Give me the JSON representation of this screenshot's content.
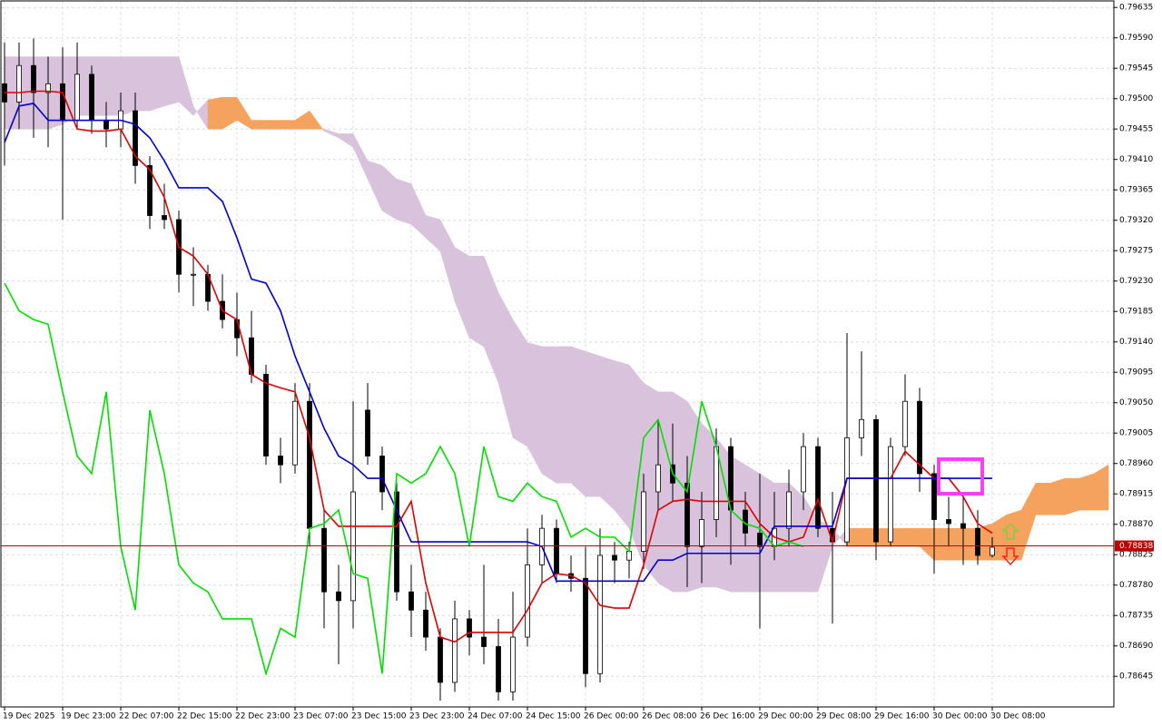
{
  "chart_data": {
    "type": "candlestick",
    "ylim": [
      0.78601,
      0.79646
    ],
    "yticks": [
      0.79635,
      {
        "value": 0.7959,
        "label": "0.79590"
      },
      0.79545,
      {
        "value": 0.795,
        "label": "0.79500"
      },
      0.79455,
      {
        "value": 0.7941,
        "label": "0.79410"
      },
      0.79365,
      {
        "value": 0.7932,
        "label": "0.79320"
      },
      0.79275,
      {
        "value": 0.7923,
        "label": "0.79230"
      },
      0.79185,
      {
        "value": 0.7914,
        "label": "0.79140"
      },
      0.79095,
      {
        "value": 0.7905,
        "label": "0.79050"
      },
      0.79005,
      {
        "value": 0.7896,
        "label": "0.78960"
      },
      0.78915,
      {
        "value": 0.7887,
        "label": "0.78870"
      },
      0.78825,
      {
        "value": 0.7878,
        "label": "0.78780"
      },
      0.78735,
      {
        "value": 0.7869,
        "label": "0.78690"
      },
      0.78645
    ],
    "grid": true,
    "categories": [
      "19 Dec 2025",
      null,
      null,
      null,
      "19 Dec 23:00",
      null,
      null,
      null,
      "22 Dec 07:00",
      null,
      null,
      null,
      "22 Dec 15:00",
      null,
      null,
      null,
      "22 Dec 23:00",
      null,
      null,
      null,
      "23 Dec 07:00",
      null,
      null,
      null,
      "23 Dec 15:00",
      null,
      null,
      null,
      "23 Dec 23:00",
      null,
      null,
      null,
      "24 Dec 07:00",
      null,
      null,
      null,
      "24 Dec 15:00",
      null,
      null,
      null,
      "26 Dec 00:00",
      null,
      null,
      null,
      "26 Dec 08:00",
      null,
      null,
      null,
      "26 Dec 16:00",
      null,
      null,
      null,
      "29 Dec 00:00",
      null,
      null,
      null,
      "29 Dec 08:00",
      null,
      null,
      null,
      "29 Dec 16:00",
      null,
      null,
      null,
      "30 Dec 00:00",
      null,
      null,
      null,
      "30 Dec 08:00",
      null,
      null,
      null,
      null,
      null,
      null,
      null,
      null
    ],
    "up_color": "#ffffff",
    "down_color": "#000000",
    "open": [
      0.79522,
      0.79495,
      0.79549,
      0.79509,
      0.79522,
      0.79468,
      0.79536,
      0.79468,
      0.79455,
      0.79482,
      0.79401,
      0.79327,
      0.79321,
      0.7924,
      0.7924,
      0.792,
      0.79173,
      0.79146,
      0.79092,
      0.78971,
      0.78958,
      0.79052,
      0.78864,
      0.7877,
      0.78757,
      0.79039,
      0.78971,
      0.78918,
      0.7877,
      0.78743,
      0.78703,
      0.78636,
      0.7873,
      0.78703,
      0.78689,
      0.78622,
      0.78703,
      0.7881,
      0.78864,
      0.78797,
      0.7879,
      0.78649,
      0.78824,
      0.78817,
      0.7883,
      0.78918,
      0.78958,
      0.78931,
      0.78837,
      0.78877,
      0.78985,
      0.78891,
      0.78857,
      0.78837,
      0.78864,
      0.78918,
      0.78985,
      0.78864,
      0.78844,
      0.78998,
      0.79025,
      0.78844,
      0.78985,
      0.79052,
      0.78945,
      0.78877,
      0.78871,
      0.78864,
      0.78824,
      null,
      null,
      null,
      null,
      null,
      null,
      null,
      null
    ],
    "high": [
      0.79583,
      0.79583,
      0.79589,
      0.79562,
      0.79576,
      0.79583,
      0.79549,
      0.79495,
      0.79509,
      0.79509,
      0.79415,
      0.79374,
      0.79334,
      0.7928,
      0.79254,
      0.7924,
      0.79213,
      0.79186,
      0.79106,
      0.78998,
      0.79079,
      0.79079,
      0.78891,
      0.7881,
      0.79052,
      0.79079,
      0.78985,
      0.78931,
      0.7881,
      0.7877,
      0.78716,
      0.78757,
      0.78743,
      0.7881,
      0.7873,
      0.7877,
      0.78864,
      0.78884,
      0.78877,
      0.78824,
      0.78837,
      0.78864,
      0.78844,
      0.78844,
      0.78945,
      0.79025,
      0.79019,
      0.78971,
      0.78918,
      0.79012,
      0.78998,
      0.78918,
      0.78945,
      0.78918,
      0.78951,
      0.79005,
      0.78998,
      0.78918,
      0.79153,
      0.79126,
      0.79032,
      0.78998,
      0.79092,
      0.79072,
      0.78958,
      0.78911,
      0.78911,
      0.78891,
      0.78851,
      null,
      null,
      null,
      null,
      null,
      null,
      null,
      null
    ],
    "low": [
      0.79401,
      0.79455,
      0.79442,
      0.79428,
      0.79321,
      0.79455,
      0.79448,
      0.79428,
      0.79428,
      0.79374,
      0.79307,
      0.79307,
      0.79213,
      0.79193,
      0.79186,
      0.7916,
      0.79119,
      0.79079,
      0.78958,
      0.78931,
      0.78945,
      0.78837,
      0.78716,
      0.78663,
      0.78716,
      0.78958,
      0.78891,
      0.78757,
      0.78703,
      0.78683,
      0.78609,
      0.78622,
      0.78676,
      0.78663,
      0.78609,
      0.78609,
      0.78689,
      0.78783,
      0.78783,
      0.7877,
      0.78629,
      0.78636,
      0.78783,
      0.7879,
      0.78804,
      0.78891,
      0.78904,
      0.78777,
      0.78783,
      0.78851,
      0.7881,
      0.78837,
      0.78716,
      0.78817,
      0.78837,
      0.78891,
      0.78851,
      0.78723,
      0.78837,
      0.78971,
      0.78817,
      0.78837,
      0.78971,
      0.78918,
      0.78797,
      0.78837,
      0.7881,
      0.7881,
      0.78821,
      null,
      null,
      null,
      null,
      null,
      null,
      null,
      null
    ],
    "close": [
      0.79495,
      0.79549,
      0.79509,
      0.79522,
      0.79468,
      0.79536,
      0.79468,
      0.79455,
      0.79482,
      0.79401,
      0.79327,
      0.79321,
      0.7924,
      0.7924,
      0.792,
      0.79173,
      0.79146,
      0.79092,
      0.78971,
      0.78958,
      0.79052,
      0.78864,
      0.7877,
      0.78757,
      0.78918,
      0.78971,
      0.78918,
      0.7877,
      0.78743,
      0.78703,
      0.78636,
      0.7873,
      0.78703,
      0.78689,
      0.78622,
      0.78703,
      0.7881,
      0.78864,
      0.78797,
      0.7879,
      0.78649,
      0.78824,
      0.78817,
      0.7883,
      0.78918,
      0.78958,
      0.78931,
      0.78837,
      0.78877,
      0.78985,
      0.78891,
      0.78857,
      0.78837,
      0.78864,
      0.78918,
      0.78985,
      0.78864,
      0.78844,
      0.78998,
      0.79025,
      0.78844,
      0.78985,
      0.79052,
      0.78945,
      0.78877,
      0.78871,
      0.78864,
      0.78824,
      0.78836,
      null,
      null,
      null,
      null,
      null,
      null,
      null,
      null
    ],
    "cloud": {
      "up_color": "#f5a25e",
      "down_color": "#d9c2dc",
      "span_a": [
        0.79455,
        0.79455,
        0.79455,
        0.79455,
        0.79462,
        0.79475,
        0.79475,
        0.79475,
        0.79475,
        0.79482,
        0.79482,
        0.79489,
        0.79495,
        0.79475,
        0.79498,
        0.79502,
        0.79502,
        0.79468,
        0.79468,
        0.79468,
        0.79468,
        0.79482,
        0.79452,
        0.79442,
        0.79428,
        0.79381,
        0.79334,
        0.79321,
        0.79314,
        0.79294,
        0.79274,
        0.792,
        0.79146,
        0.79133,
        0.79079,
        0.78998,
        0.78985,
        0.78945,
        0.78931,
        0.78931,
        0.78911,
        0.78911,
        0.78891,
        0.78864,
        0.7881,
        0.78783,
        0.7877,
        0.7877,
        0.78777,
        0.78777,
        0.7877,
        0.7877,
        0.7877,
        0.7877,
        0.7877,
        0.7877,
        0.7877,
        0.78837,
        0.78864,
        0.78864,
        0.78864,
        0.78864,
        0.78864,
        0.78864,
        0.78864,
        0.78864,
        0.78864,
        0.78864,
        0.78871,
        0.78884,
        0.78891,
        0.78931,
        0.78931,
        0.78938,
        0.78938,
        0.78945,
        0.78958
      ],
      "span_b": [
        0.79562,
        0.79562,
        0.79562,
        0.79562,
        0.79562,
        0.79562,
        0.79562,
        0.79562,
        0.79562,
        0.79562,
        0.79562,
        0.79562,
        0.79562,
        0.79489,
        0.79455,
        0.79455,
        0.79468,
        0.79455,
        0.79455,
        0.79455,
        0.79455,
        0.79455,
        0.79455,
        0.79448,
        0.79448,
        0.79408,
        0.79401,
        0.79381,
        0.79374,
        0.79327,
        0.79321,
        0.7928,
        0.79267,
        0.79267,
        0.79213,
        0.79173,
        0.79139,
        0.79133,
        0.79133,
        0.79133,
        0.79126,
        0.79119,
        0.79112,
        0.79106,
        0.79079,
        0.79066,
        0.79066,
        0.79052,
        0.79019,
        0.78998,
        0.78971,
        0.78958,
        0.78945,
        0.78931,
        0.78931,
        0.78911,
        0.78877,
        0.78864,
        0.78837,
        0.78837,
        0.78837,
        0.78837,
        0.78837,
        0.78837,
        0.78817,
        0.78817,
        0.78817,
        0.78817,
        0.78817,
        0.78817,
        0.78817,
        0.78884,
        0.78884,
        0.78884,
        0.78891,
        0.78891,
        0.78891
      ]
    },
    "lines": [
      {
        "color": "#e00000",
        "values": [
          0.79509,
          0.79509,
          0.79511,
          0.79511,
          0.79509,
          0.79455,
          0.79452,
          0.79452,
          0.79455,
          0.79415,
          0.79395,
          0.79354,
          0.7928,
          0.79267,
          0.7924,
          0.79186,
          0.79173,
          0.79092,
          0.79079,
          0.79072,
          0.79066,
          0.78998,
          0.78891,
          0.78867,
          0.78867,
          0.78867,
          0.78867,
          0.78867,
          0.78904,
          0.78783,
          0.78703,
          0.78696,
          0.7871,
          0.7871,
          0.7871,
          0.7871,
          0.78743,
          0.78783,
          0.78797,
          0.78794,
          0.78783,
          0.7875,
          0.78746,
          0.78746,
          0.7881,
          0.78891,
          0.78904,
          0.78907,
          0.78904,
          0.78904,
          0.78904,
          0.78904,
          0.78871,
          0.78851,
          0.78844,
          0.78851,
          0.78907,
          0.78844,
          0.78938,
          0.78938,
          0.78938,
          0.78938,
          0.78978,
          0.78958,
          0.78938,
          0.78938,
          0.78911,
          0.78871,
          0.78857,
          null,
          null,
          null,
          null,
          null,
          null,
          null,
          null
        ]
      },
      {
        "color": "#0000d0",
        "values": [
          0.79435,
          0.79489,
          0.79493,
          0.79468,
          0.79468,
          0.79468,
          0.79468,
          0.79468,
          0.79468,
          0.79462,
          0.79442,
          0.79408,
          0.79368,
          0.79368,
          0.79368,
          0.79348,
          0.79294,
          0.79233,
          0.79227,
          0.79186,
          0.79119,
          0.79066,
          0.79012,
          0.78971,
          0.78958,
          0.78938,
          0.78938,
          0.78891,
          0.78844,
          0.78844,
          0.78844,
          0.78844,
          0.78844,
          0.78844,
          0.78844,
          0.78844,
          0.78844,
          0.78837,
          0.78786,
          0.78786,
          0.78786,
          0.78786,
          0.78786,
          0.78786,
          0.78786,
          0.78817,
          0.78817,
          0.78827,
          0.78827,
          0.78827,
          0.78827,
          0.78827,
          0.78827,
          0.78867,
          0.78867,
          0.78867,
          0.78867,
          0.78867,
          0.78938,
          0.78938,
          0.78938,
          0.78938,
          0.78938,
          0.78938,
          0.78938,
          0.78938,
          0.78938,
          0.78938,
          0.78938,
          null,
          null,
          null,
          null,
          null,
          null,
          null,
          null
        ]
      },
      {
        "color": "#00e000",
        "values": [
          0.79227,
          0.79186,
          0.79173,
          0.79166,
          0.79066,
          0.78971,
          0.78945,
          0.79066,
          0.78837,
          0.78743,
          0.79039,
          0.78945,
          0.7881,
          0.78783,
          0.7877,
          0.7873,
          0.7873,
          0.7873,
          0.78649,
          0.78716,
          0.78703,
          0.78864,
          0.78871,
          0.78891,
          0.78797,
          0.7879,
          0.78649,
          0.78945,
          0.78931,
          0.78945,
          0.78985,
          0.78945,
          0.78837,
          0.78985,
          0.78911,
          0.78904,
          0.78931,
          0.78911,
          0.78904,
          0.78851,
          0.78864,
          0.78851,
          0.78851,
          0.7883,
          0.78998,
          0.79025,
          0.78945,
          0.78918,
          0.79052,
          0.78985,
          0.78891,
          0.78871,
          0.78864,
          0.78837,
          0.78844,
          0.78837,
          null,
          null,
          null,
          null,
          null,
          null,
          null,
          null,
          null,
          null,
          null,
          null,
          null,
          null,
          null,
          null,
          null,
          null,
          null,
          null,
          null
        ]
      }
    ],
    "current_price": 0.78838,
    "current_price_color": "#c00000"
  }
}
